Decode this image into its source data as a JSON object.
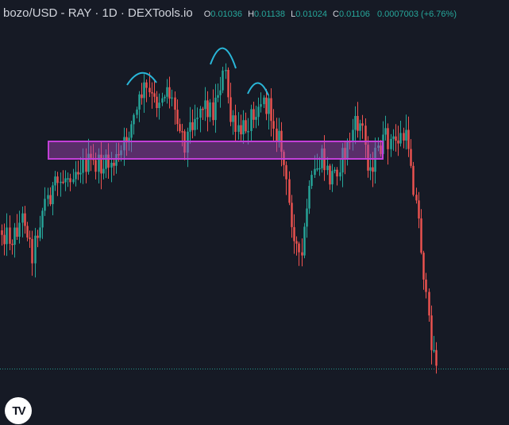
{
  "header": {
    "title": "bozo/USD - RAY · 1D · DEXTools.io",
    "ohlc": {
      "o_label": "O",
      "o_value": "0.01036",
      "h_label": "H",
      "h_value": "0.01138",
      "l_label": "L",
      "l_value": "0.01024",
      "c_label": "C",
      "c_value": "0.01106",
      "change": "0.0007003 (+6.76%)"
    }
  },
  "logo": {
    "text": "TV",
    "icon": "tradingview-logo-icon"
  },
  "colors": {
    "background": "#161a25",
    "up": "#26a69a",
    "down": "#ef5350",
    "zone_fill": "rgba(171, 71, 188, 0.45)",
    "zone_stroke": "#c23fd8",
    "annotation": "#29b6d8",
    "last_price_line": "#26a69a"
  },
  "chart_data": {
    "type": "candlestick",
    "annotations": [
      "head-and-shoulders arcs",
      "horizontal support zone",
      "last price dotted line"
    ]
  }
}
